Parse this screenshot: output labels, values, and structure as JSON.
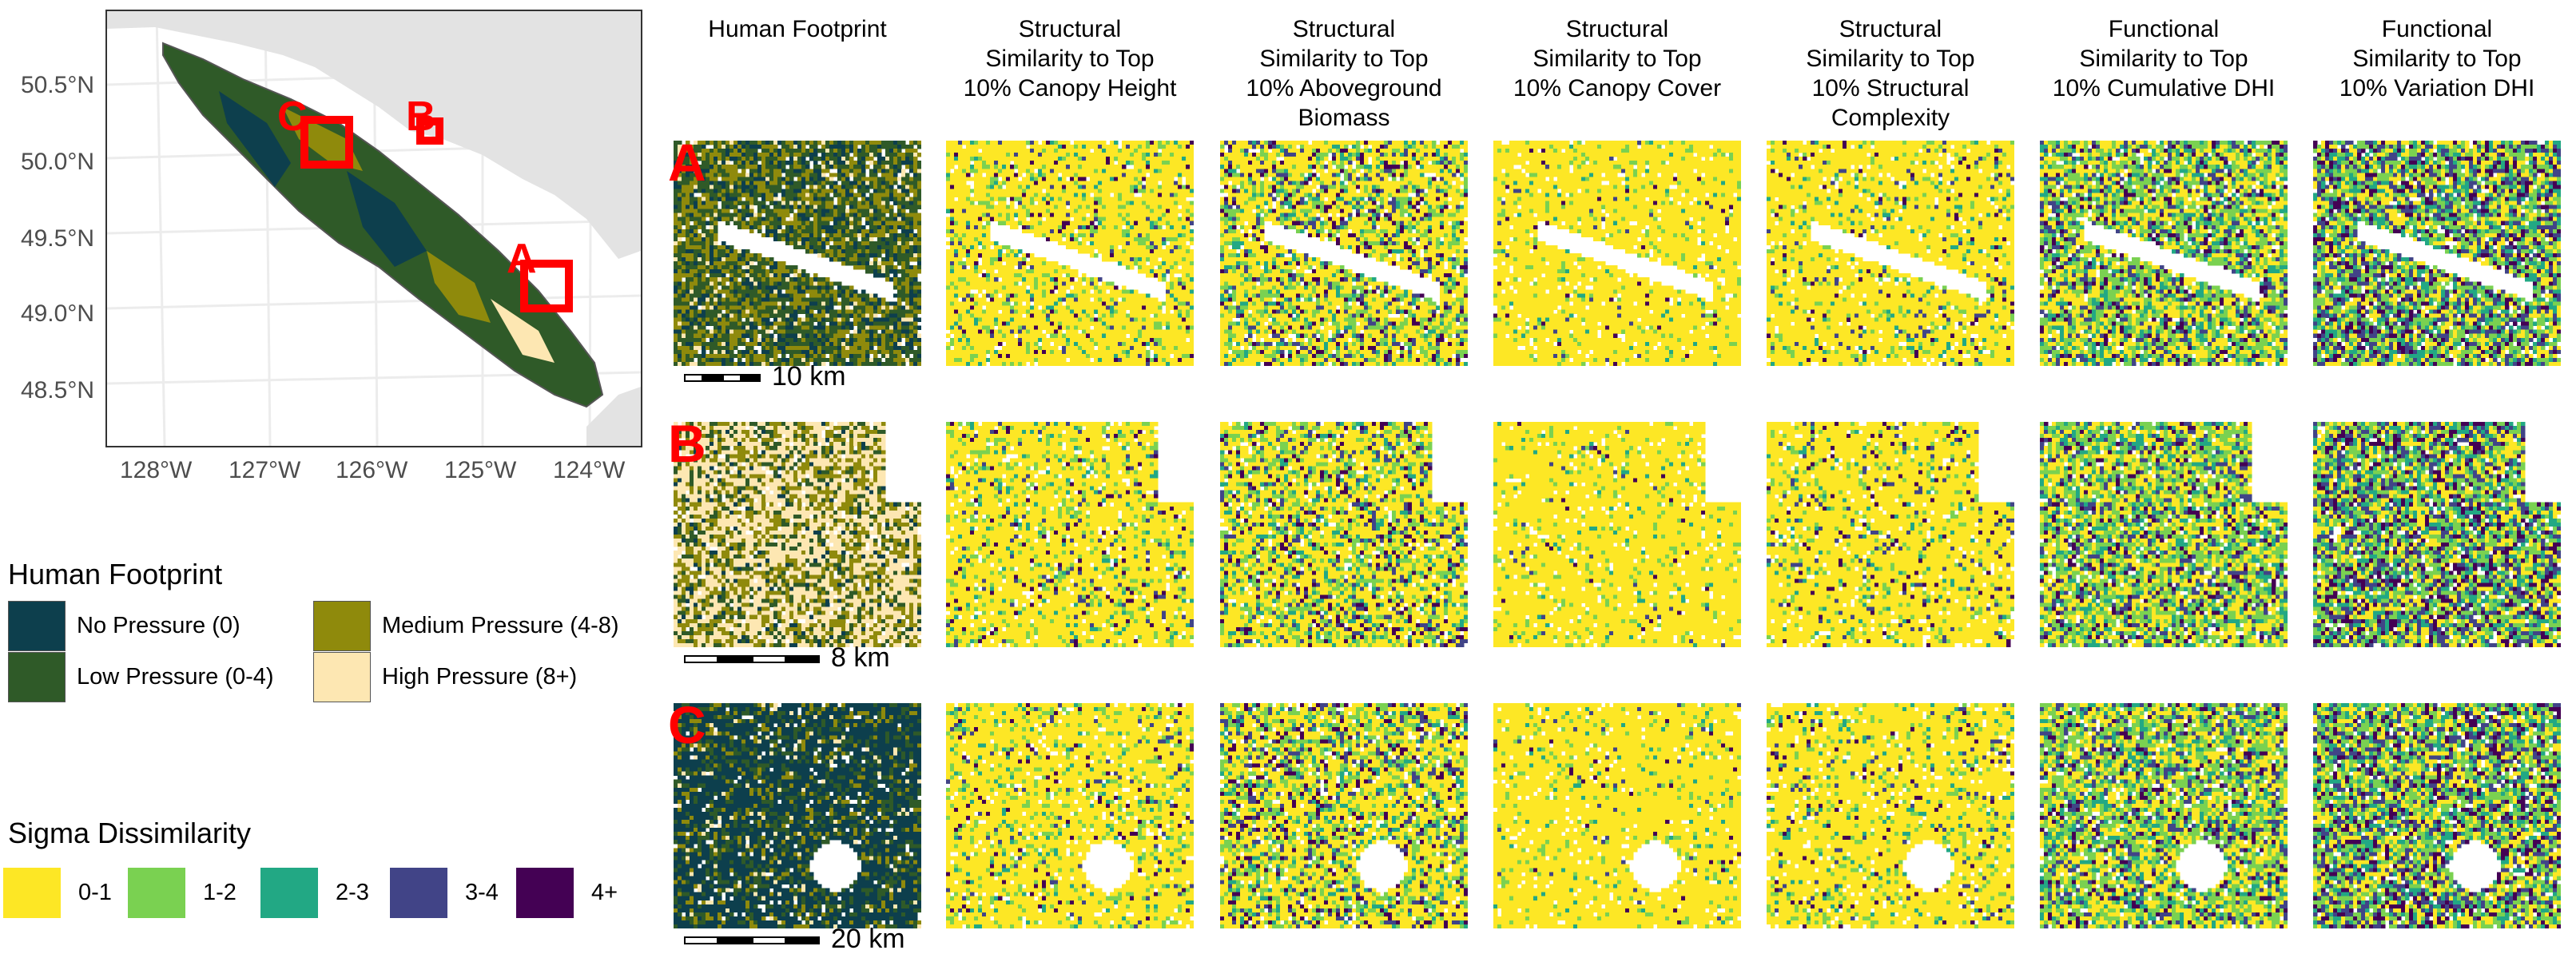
{
  "overview_map": {
    "y_ticks": [
      "50.5°N",
      "50.0°N",
      "49.5°N",
      "49.0°N",
      "48.5°N"
    ],
    "x_ticks": [
      "128°W",
      "127°W",
      "126°W",
      "125°W",
      "124°W"
    ],
    "site_labels": [
      "C",
      "B",
      "A"
    ]
  },
  "columns": [
    "Human Footprint",
    "Structural\nSimilarity to Top\n10% Canopy Height",
    "Structural\nSimilarity to Top\n10% Aboveground\nBiomass",
    "Structural\nSimilarity to Top\n10% Canopy Cover",
    "Structural\nSimilarity to Top\n10% Structural\nComplexity",
    "Functional\nSimilarity to Top\n10% Cumulative DHI",
    "Functional\nSimilarity to Top\n10% Variation DHI"
  ],
  "rows": [
    {
      "letter": "A",
      "scale": "10 km"
    },
    {
      "letter": "B",
      "scale": "8 km"
    },
    {
      "letter": "C",
      "scale": "20 km"
    }
  ],
  "human_footprint_legend": {
    "title": "Human Footprint",
    "items": [
      {
        "label": "No Pressure (0)",
        "color": "#0d3f4d"
      },
      {
        "label": "Medium Pressure (4-8)",
        "color": "#8f8a0c"
      },
      {
        "label": "Low Pressure (0-4)",
        "color": "#2f5a28"
      },
      {
        "label": "High Pressure (8+)",
        "color": "#fde7b2"
      }
    ]
  },
  "sigma_legend": {
    "title": "Sigma Dissimilarity",
    "items": [
      {
        "label": "0-1",
        "color": "#fde725"
      },
      {
        "label": "1-2",
        "color": "#7ad151"
      },
      {
        "label": "2-3",
        "color": "#22a884"
      },
      {
        "label": "3-4",
        "color": "#414487"
      },
      {
        "label": "4+",
        "color": "#440154"
      }
    ]
  },
  "colors": {
    "site_box": "#ff0000",
    "land_background": "#e3e3e3",
    "sea": "#ffffff"
  }
}
